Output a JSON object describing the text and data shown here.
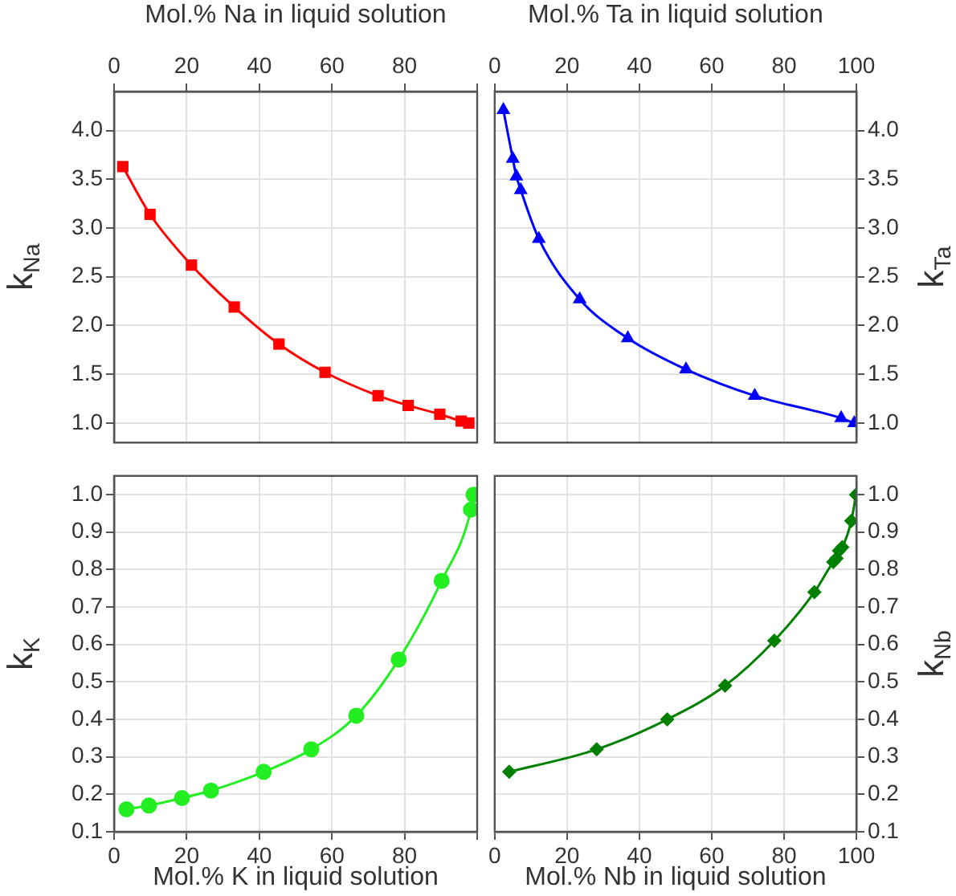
{
  "chart_data": [
    {
      "type": "line",
      "xlabel": "Mol.% Na in liquid solution",
      "ylabel": "k$_{Na}$",
      "marker": "square",
      "grid": true,
      "xlim": [
        0,
        100
      ],
      "xticks": [
        0,
        20,
        40,
        60,
        80,
        {
          "value": 100,
          "label": null
        }
      ],
      "ylim": [
        0.8,
        4.4
      ],
      "yticks": [
        {
          "value": 1,
          "label": "1.0"
        },
        1.5,
        {
          "value": 2,
          "label": "2.0"
        },
        2.5,
        {
          "value": 3,
          "label": "3.0"
        },
        3.5,
        {
          "value": 4,
          "label": "4.0"
        }
      ],
      "series": [
        {
          "color": "#ff0000",
          "x": [
            2.4,
            9.9,
            21.3,
            33.1,
            45.4,
            58.1,
            72.7,
            81,
            89.7,
            95.6,
            97.7
          ],
          "values": [
            3.63,
            3.14,
            2.62,
            2.19,
            1.81,
            1.52,
            1.28,
            1.18,
            1.09,
            1.02,
            1.0
          ]
        }
      ]
    },
    {
      "type": "line",
      "xlabel": "Mol.% Ta in liquid solution",
      "ylabel": "k$_{Ta}$",
      "marker": "triangle",
      "grid": true,
      "xlim": [
        0,
        100
      ],
      "xticks": [
        0,
        20,
        40,
        60,
        80,
        100
      ],
      "ylim": [
        0.8,
        4.4
      ],
      "yticks": [
        {
          "value": 1,
          "label": "1.0"
        },
        1.5,
        {
          "value": 2,
          "label": "2.0"
        },
        2.5,
        {
          "value": 3,
          "label": "3.0"
        },
        3.5,
        {
          "value": 4,
          "label": "4.0"
        }
      ],
      "series": [
        {
          "color": "#0000ff",
          "x": [
            2.4,
            5.0,
            6.0,
            7.2,
            12.2,
            23.5,
            36.8,
            52.9,
            71.9,
            95.8,
            99.4
          ],
          "values": [
            4.21,
            3.71,
            3.53,
            3.39,
            2.89,
            2.27,
            1.87,
            1.55,
            1.28,
            1.05,
            1.0
          ]
        }
      ]
    },
    {
      "type": "line",
      "xlabel": "Mol.% K in liquid solution",
      "ylabel": "k$_{K}$",
      "marker": "circle",
      "grid": true,
      "xlim": [
        0,
        100
      ],
      "xticks": [
        0,
        20,
        40,
        60,
        80,
        {
          "value": 100,
          "label": null
        }
      ],
      "ylim": [
        0.1,
        1.05
      ],
      "yticks": [
        0.1,
        0.2,
        0.3,
        0.4,
        0.5,
        0.6,
        0.7,
        0.8,
        0.9,
        {
          "value": 1,
          "label": "1.0"
        }
      ],
      "series": [
        {
          "color": "#22ee22",
          "x": [
            3.4,
            9.6,
            18.7,
            26.7,
            41.2,
            54.3,
            66.7,
            78.4,
            90.2,
            98.3,
            99.0
          ],
          "values": [
            0.16,
            0.17,
            0.19,
            0.21,
            0.26,
            0.32,
            0.41,
            0.56,
            0.77,
            0.96,
            1.0
          ]
        }
      ]
    },
    {
      "type": "line",
      "xlabel": "Mol.% Nb in liquid solution",
      "ylabel": "k$_{Nb}$",
      "marker": "diamond",
      "grid": true,
      "xlim": [
        0,
        100
      ],
      "xticks": [
        0,
        20,
        40,
        60,
        80,
        100
      ],
      "ylim": [
        0.1,
        1.05
      ],
      "yticks": [
        0.1,
        0.2,
        0.3,
        0.4,
        0.5,
        0.6,
        0.7,
        0.8,
        0.9,
        {
          "value": 1,
          "label": "1.0"
        }
      ],
      "series": [
        {
          "color": "#008000",
          "x": [
            4.0,
            28.2,
            47.7,
            63.7,
            77.3,
            88.4,
            93.6,
            94.5,
            95.2,
            96.1,
            98.6,
            99.9
          ],
          "values": [
            0.26,
            0.32,
            0.4,
            0.49,
            0.61,
            0.74,
            0.82,
            0.83,
            0.85,
            0.86,
            0.93,
            1.0
          ]
        }
      ]
    }
  ]
}
